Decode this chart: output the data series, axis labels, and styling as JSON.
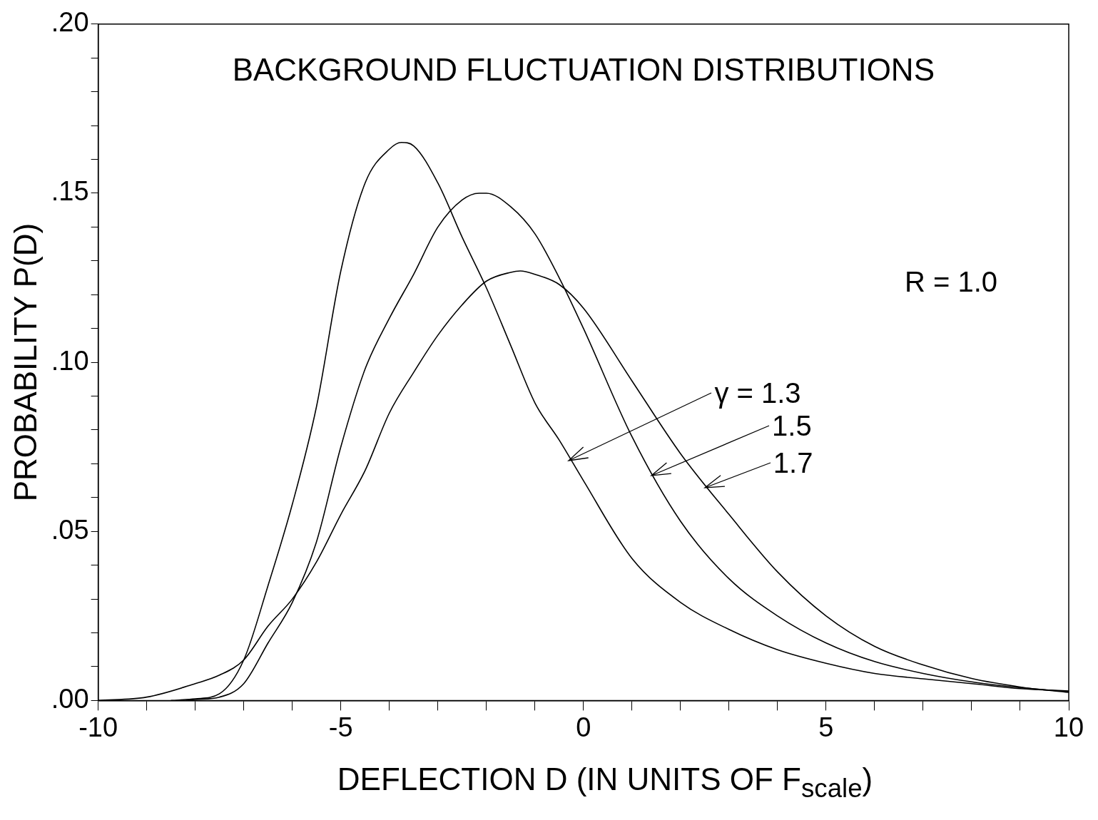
{
  "chart_data": {
    "type": "line",
    "title": "BACKGROUND FLUCTUATION DISTRIBUTIONS",
    "xlabel": "DEFLECTION D (IN UNITS OF F$_{scale}$)",
    "ylabel": "PROBABILITY P(D)",
    "xlim": [
      -10,
      10
    ],
    "ylim": [
      0,
      0.2
    ],
    "xticks": [
      -10,
      {
        "value": -9,
        "label": null
      },
      {
        "value": -8,
        "label": null
      },
      {
        "value": -7,
        "label": null
      },
      {
        "value": -6,
        "label": null
      },
      -5,
      {
        "value": -4,
        "label": null
      },
      {
        "value": -3,
        "label": null
      },
      {
        "value": -2,
        "label": null
      },
      {
        "value": -1,
        "label": null
      },
      0,
      {
        "value": 1,
        "label": null
      },
      {
        "value": 2,
        "label": null
      },
      {
        "value": 3,
        "label": null
      },
      {
        "value": 4,
        "label": null
      },
      5,
      {
        "value": 6,
        "label": null
      },
      {
        "value": 7,
        "label": null
      },
      {
        "value": 8,
        "label": null
      },
      {
        "value": 9,
        "label": null
      },
      10
    ],
    "yticks": [
      {
        "value": 0,
        "label": ".00"
      },
      {
        "value": 0.01,
        "label": null
      },
      {
        "value": 0.02,
        "label": null
      },
      {
        "value": 0.03,
        "label": null
      },
      {
        "value": 0.04,
        "label": null
      },
      {
        "value": 0.05,
        "label": ".05"
      },
      {
        "value": 0.06,
        "label": null
      },
      {
        "value": 0.07,
        "label": null
      },
      {
        "value": 0.08,
        "label": null
      },
      {
        "value": 0.09,
        "label": null
      },
      {
        "value": 0.1,
        "label": ".10"
      },
      {
        "value": 0.11,
        "label": null
      },
      {
        "value": 0.12,
        "label": null
      },
      {
        "value": 0.13,
        "label": null
      },
      {
        "value": 0.14,
        "label": null
      },
      {
        "value": 0.15,
        "label": ".15"
      },
      {
        "value": 0.16,
        "label": null
      },
      {
        "value": 0.17,
        "label": null
      },
      {
        "value": 0.18,
        "label": null
      },
      {
        "value": 0.19,
        "label": null
      },
      {
        "value": 0.2,
        "label": ".20"
      }
    ],
    "grid": false,
    "legend": false,
    "marker": "none",
    "line_style": "solid",
    "series": [
      {
        "color": "#000000",
        "x": [
          -8.5,
          -8,
          -7.5,
          -7,
          -6.5,
          -6,
          -5.5,
          -5,
          -4.5,
          -4,
          -3.75,
          -3.5,
          -3,
          -2.5,
          -2,
          -1.5,
          -1,
          -0.5,
          0,
          1,
          2,
          3,
          4,
          5,
          6,
          7,
          8,
          9,
          10
        ],
        "values": [
          0,
          0.0005,
          0.002,
          0.012,
          0.034,
          0.058,
          0.087,
          0.127,
          0.153,
          0.163,
          0.165,
          0.164,
          0.153,
          0.137,
          0.122,
          0.105,
          0.088,
          0.077,
          0.065,
          0.042,
          0.029,
          0.021,
          0.015,
          0.011,
          0.008,
          0.0064,
          0.005,
          0.0035,
          0.0028
        ]
      },
      {
        "color": "#000000",
        "x": [
          -8.2,
          -8,
          -7.5,
          -7,
          -6.5,
          -6,
          -5.5,
          -5,
          -4.5,
          -4,
          -3.5,
          -3,
          -2.5,
          -2.15,
          -2,
          -1.5,
          -1,
          -0.5,
          0,
          1,
          2,
          3,
          4,
          5,
          6,
          7,
          8,
          9,
          10
        ],
        "values": [
          0,
          0.0003,
          0.001,
          0.005,
          0.017,
          0.029,
          0.047,
          0.075,
          0.098,
          0.113,
          0.126,
          0.14,
          0.148,
          0.15,
          0.15,
          0.146,
          0.138,
          0.125,
          0.11,
          0.078,
          0.053,
          0.036,
          0.025,
          0.017,
          0.0115,
          0.008,
          0.0055,
          0.0038,
          0.0026
        ]
      },
      {
        "color": "#000000",
        "x": [
          -10,
          -9,
          -8,
          -7.5,
          -7,
          -6.5,
          -6,
          -5.5,
          -5,
          -4.5,
          -4,
          -3.5,
          -3,
          -2.5,
          -2,
          -1.5,
          -1.3,
          -1,
          -0.5,
          0,
          1,
          2,
          3,
          4,
          5,
          6,
          7,
          8,
          9,
          10
        ],
        "values": [
          0,
          0.001,
          0.005,
          0.0075,
          0.012,
          0.022,
          0.03,
          0.041,
          0.055,
          0.068,
          0.085,
          0.097,
          0.108,
          0.117,
          0.124,
          0.1266,
          0.127,
          0.126,
          0.123,
          0.116,
          0.0945,
          0.073,
          0.055,
          0.038,
          0.025,
          0.016,
          0.0105,
          0.0065,
          0.004,
          0.0024
        ]
      }
    ],
    "annotations": [
      {
        "text": "γ = 1.3",
        "x": -0.3,
        "y": 0.071
      },
      {
        "text": "1.5",
        "x": 1.4,
        "y": 0.0666
      },
      {
        "text": "1.7",
        "x": 2.5,
        "y": 0.063
      },
      "R = 1.0"
    ]
  }
}
